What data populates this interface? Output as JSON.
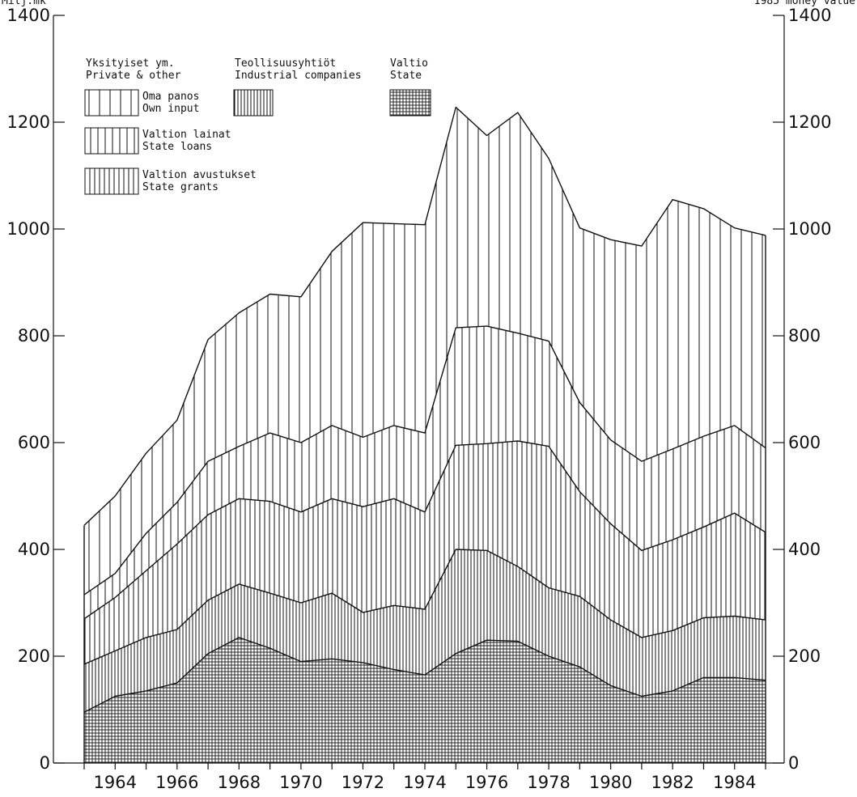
{
  "chart_data": {
    "type": "area",
    "stacked": true,
    "title": "",
    "corner_label_left": "Milj.mk",
    "corner_label_right": "1985 money value",
    "x": [
      1963,
      1964,
      1965,
      1966,
      1967,
      1968,
      1969,
      1970,
      1971,
      1972,
      1973,
      1974,
      1975,
      1976,
      1977,
      1978,
      1979,
      1980,
      1981,
      1982,
      1983,
      1984,
      1985
    ],
    "x_ticks": [
      1964,
      1966,
      1968,
      1970,
      1972,
      1974,
      1976,
      1978,
      1980,
      1982,
      1984
    ],
    "y_ticks": [
      0,
      200,
      400,
      600,
      800,
      1000,
      1200,
      1400
    ],
    "ylim": [
      0,
      1400
    ],
    "grid": false,
    "legend_position": "top-left",
    "legend": {
      "groups": [
        {
          "title_fi": "Yksityiset ym.",
          "title_en": "Private & other"
        },
        {
          "title_fi": "Teollisuusyhtiöt",
          "title_en": "Industrial companies"
        },
        {
          "title_fi": "Valtio",
          "title_en": "State"
        }
      ],
      "entries": [
        {
          "label_fi": "Oma panos",
          "label_en": "Own input",
          "pattern": "wide-vertical"
        },
        {
          "label_fi": "Valtion lainat",
          "label_en": "State loans",
          "pattern": "medium-vertical"
        },
        {
          "label_fi": "Valtion avustukset",
          "label_en": "State grants",
          "pattern": "dense-vertical"
        },
        {
          "label_fi": "",
          "label_en": "",
          "pattern": "fine-vertical"
        },
        {
          "label_fi": "",
          "label_en": "",
          "pattern": "crosshatch"
        }
      ]
    },
    "series": [
      {
        "values": [
          95,
          125,
          135,
          150,
          205,
          235,
          215,
          190,
          195,
          188,
          175,
          165,
          205,
          230,
          228,
          200,
          180,
          145,
          125,
          135,
          160,
          160,
          155
        ],
        "pattern": "crosshatch"
      },
      {
        "values": [
          185,
          210,
          235,
          250,
          305,
          335,
          318,
          300,
          318,
          282,
          295,
          288,
          400,
          398,
          368,
          328,
          312,
          268,
          235,
          248,
          272,
          275,
          268
        ],
        "pattern": "fine-vertical"
      },
      {
        "values": [
          270,
          310,
          360,
          410,
          465,
          495,
          490,
          470,
          495,
          480,
          495,
          470,
          595,
          598,
          603,
          593,
          508,
          448,
          398,
          418,
          442,
          468,
          432
        ],
        "pattern": "dense-vertical"
      },
      {
        "values": [
          315,
          355,
          430,
          488,
          565,
          593,
          618,
          600,
          632,
          610,
          632,
          618,
          815,
          818,
          805,
          790,
          675,
          605,
          565,
          588,
          612,
          632,
          590
        ],
        "pattern": "medium-vertical"
      },
      {
        "values": [
          445,
          500,
          580,
          642,
          793,
          843,
          878,
          873,
          958,
          1012,
          1010,
          1008,
          1228,
          1175,
          1218,
          1132,
          1002,
          980,
          968,
          1055,
          1038,
          1002,
          988
        ],
        "pattern": "wide-vertical"
      }
    ]
  }
}
